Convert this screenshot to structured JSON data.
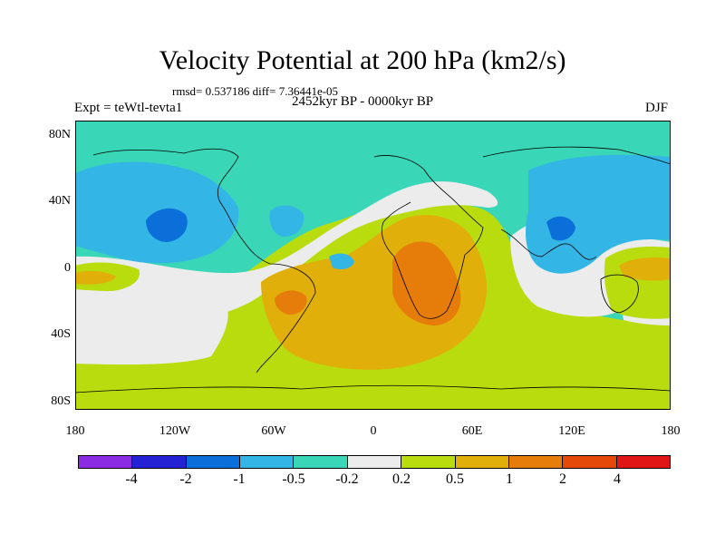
{
  "header": {
    "title": "Velocity Potential at 200 hPa (km2/s)",
    "stats": "rmsd= 0.537186 diff= 7.36441e-05",
    "experiment": "Expt = teWtl-tevta1",
    "period": "2452kyr BP - 0000kyr BP",
    "season": "DJF"
  },
  "axes": {
    "y_labels": [
      "80N",
      "40N",
      "0",
      "40S",
      "80S"
    ],
    "x_labels": [
      "180",
      "120W",
      "60W",
      "0",
      "60E",
      "120E",
      "180"
    ]
  },
  "colorbar": {
    "colors": [
      "#8b2be2",
      "#2323d4",
      "#0a6fd8",
      "#33b6e6",
      "#39d6b7",
      "#ececec",
      "#b9dc0f",
      "#e0af0a",
      "#e67c0a",
      "#e4490a",
      "#e01616"
    ],
    "labels": [
      "-4",
      "-2",
      "-1",
      "-0.5",
      "-0.2",
      "0.2",
      "0.5",
      "1",
      "2",
      "4"
    ]
  },
  "map_colors": {
    "neg_weak": "#39d6b7",
    "neg_mid": "#33b6e6",
    "neg_strong": "#0a6fd8",
    "neutral": "#ececec",
    "pos_weak": "#b9dc0f",
    "pos_mid": "#e0af0a",
    "pos_strong": "#e67c0a",
    "pos_max": "#e4490a"
  }
}
